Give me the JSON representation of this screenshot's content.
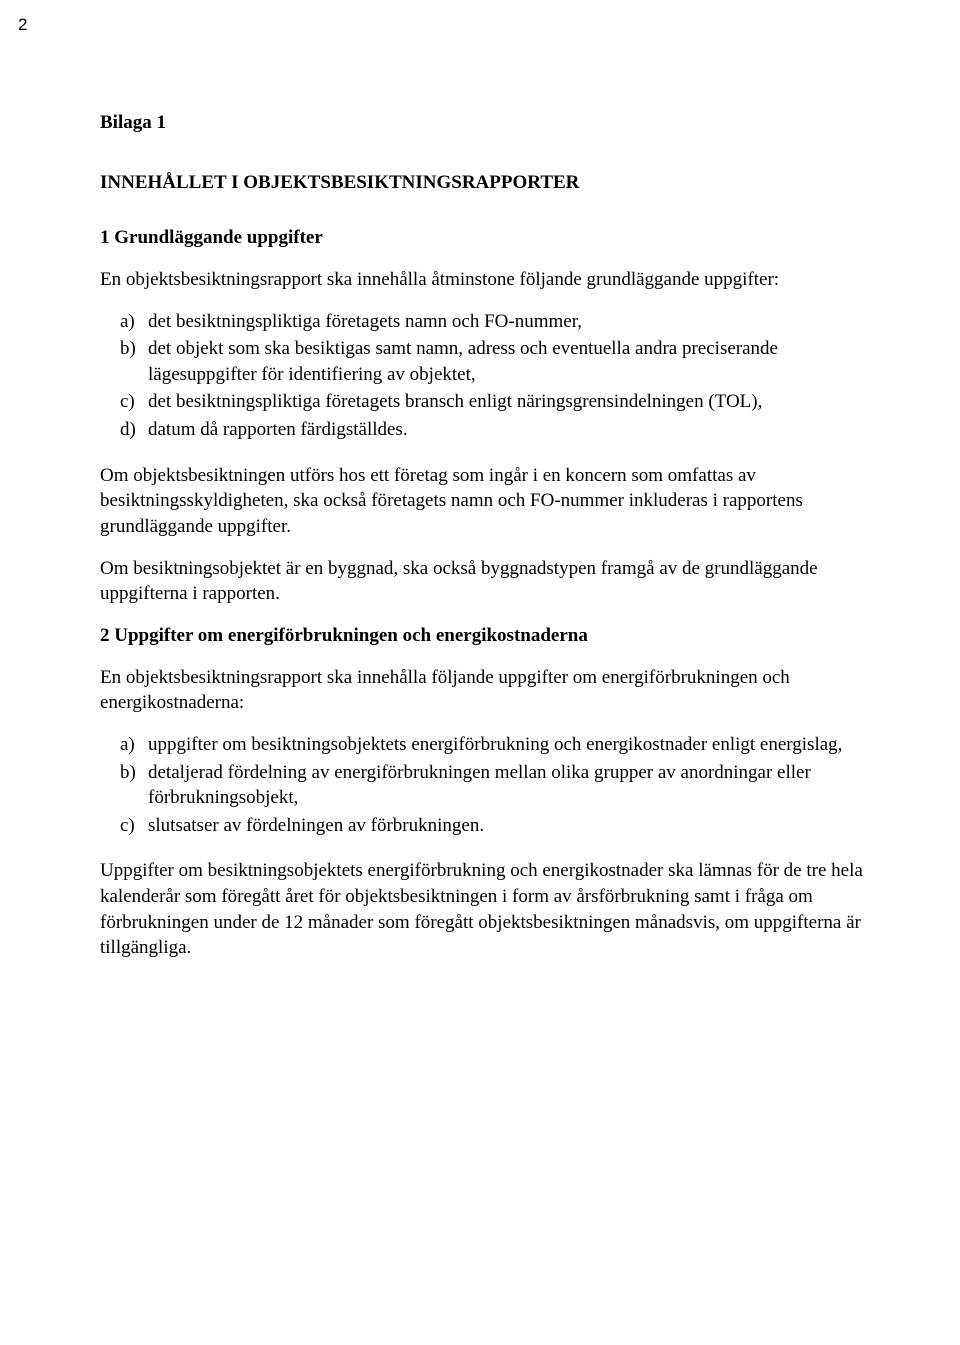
{
  "page_number": "2",
  "bilaga": "Bilaga 1",
  "title": "INNEHÅLLET I OBJEKTSBESIKTNINGSRAPPORTER",
  "section1": {
    "heading": "1 Grundläggande uppgifter",
    "intro": "En objektsbesiktningsrapport ska innehålla åtminstone följande grundläggande uppgifter:",
    "items": [
      {
        "marker": "a)",
        "text": "det besiktningspliktiga företagets namn och FO-nummer,"
      },
      {
        "marker": "b)",
        "text": "det objekt som ska besiktigas samt namn, adress och eventuella andra preciserande lägesuppgifter för identifiering av objektet,"
      },
      {
        "marker": "c)",
        "text": "det besiktningspliktiga företagets bransch enligt näringsgrensindelningen (TOL),"
      },
      {
        "marker": "d)",
        "text": "datum då rapporten färdigställdes."
      }
    ],
    "p2": "Om objektsbesiktningen utförs hos ett företag som ingår i en koncern som omfattas av besiktningsskyldigheten, ska också företagets namn och FO-nummer inkluderas i rapportens grundläggande uppgifter.",
    "p3": "Om besiktningsobjektet är en byggnad, ska också byggnadstypen framgå av de grundläggande uppgifterna i rapporten."
  },
  "section2": {
    "heading": "2 Uppgifter om energiförbrukningen och energikostnaderna",
    "intro": "En objektsbesiktningsrapport ska innehålla följande uppgifter om energiförbrukningen och energikostnaderna:",
    "items": [
      {
        "marker": "a)",
        "text": "uppgifter om besiktningsobjektets energiförbrukning och energikostnader enligt energislag,"
      },
      {
        "marker": "b)",
        "text": "detaljerad fördelning av energiförbrukningen mellan olika grupper av anordningar eller förbrukningsobjekt,"
      },
      {
        "marker": "c)",
        "text": "slutsatser av fördelningen av förbrukningen."
      }
    ],
    "p2": "Uppgifter om besiktningsobjektets energiförbrukning och energikostnader ska lämnas för de tre hela kalenderår som föregått året för objektsbesiktningen i form av årsförbrukning samt i fråga om förbrukningen under de 12 månader som föregått objektsbesiktningen månadsvis, om uppgifterna är tillgängliga."
  }
}
